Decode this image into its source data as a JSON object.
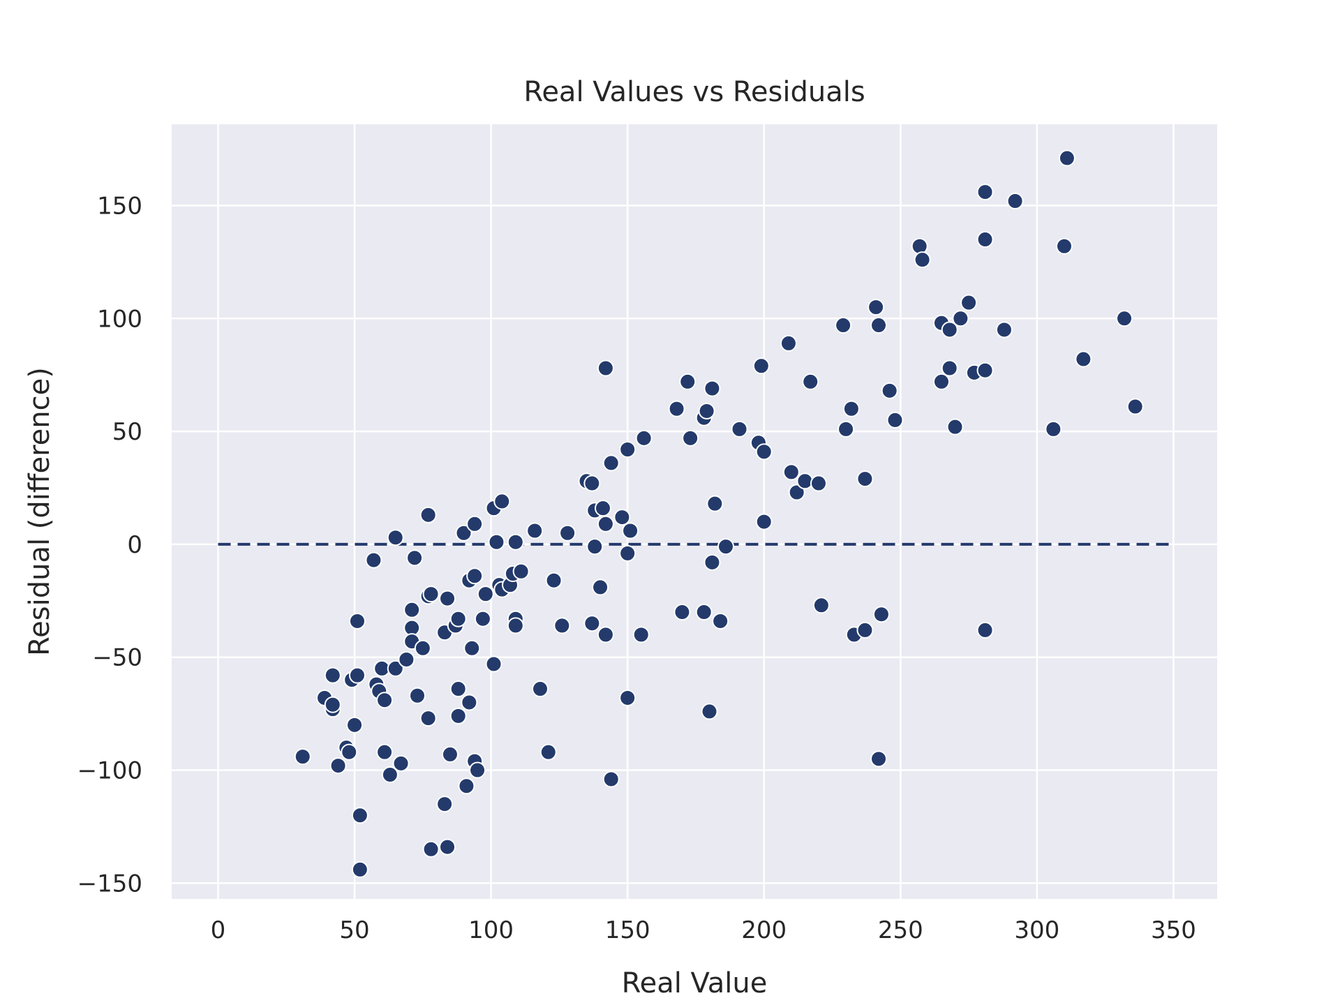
{
  "chart_data": {
    "type": "scatter",
    "title": "Real Values vs Residuals",
    "xlabel": "Real Value",
    "ylabel": "Residual (difference)",
    "xlim": [
      -17,
      366
    ],
    "ylim": [
      -157,
      186
    ],
    "xticks": [
      0,
      50,
      100,
      150,
      200,
      250,
      300,
      350
    ],
    "yticks": [
      -150,
      -100,
      -50,
      0,
      50,
      100,
      150
    ],
    "xtick_labels": [
      "0",
      "50",
      "100",
      "150",
      "200",
      "250",
      "300",
      "350"
    ],
    "ytick_labels": [
      "−150",
      "−100",
      "−50",
      "0",
      "50",
      "100",
      "150"
    ],
    "grid": true,
    "reference_line": {
      "y": 0,
      "x_range": [
        0,
        350
      ],
      "style": "dashed"
    },
    "colors": {
      "background": "#EAEAF2",
      "grid": "#FFFFFF",
      "point": "#233A6B",
      "point_edge": "#FFFFFF",
      "reference_line": "#233A6B",
      "text": "#262626"
    },
    "points": [
      {
        "x": 31,
        "y": -94
      },
      {
        "x": 39,
        "y": -68
      },
      {
        "x": 42,
        "y": -73
      },
      {
        "x": 42,
        "y": -71
      },
      {
        "x": 42,
        "y": -58
      },
      {
        "x": 44,
        "y": -98
      },
      {
        "x": 47,
        "y": -90
      },
      {
        "x": 48,
        "y": -92
      },
      {
        "x": 49,
        "y": -60
      },
      {
        "x": 50,
        "y": -80
      },
      {
        "x": 51,
        "y": -58
      },
      {
        "x": 51,
        "y": -34
      },
      {
        "x": 52,
        "y": -120
      },
      {
        "x": 52,
        "y": -144
      },
      {
        "x": 57,
        "y": -7
      },
      {
        "x": 58,
        "y": -62
      },
      {
        "x": 59,
        "y": -65
      },
      {
        "x": 60,
        "y": -55
      },
      {
        "x": 61,
        "y": -69
      },
      {
        "x": 61,
        "y": -92
      },
      {
        "x": 63,
        "y": -102
      },
      {
        "x": 65,
        "y": -55
      },
      {
        "x": 65,
        "y": 3
      },
      {
        "x": 67,
        "y": -97
      },
      {
        "x": 69,
        "y": -51
      },
      {
        "x": 71,
        "y": -29
      },
      {
        "x": 71,
        "y": -37
      },
      {
        "x": 71,
        "y": -43
      },
      {
        "x": 72,
        "y": -6
      },
      {
        "x": 73,
        "y": -67
      },
      {
        "x": 75,
        "y": -46
      },
      {
        "x": 77,
        "y": 13
      },
      {
        "x": 77,
        "y": -23
      },
      {
        "x": 77,
        "y": -77
      },
      {
        "x": 78,
        "y": -22
      },
      {
        "x": 78,
        "y": -135
      },
      {
        "x": 83,
        "y": -39
      },
      {
        "x": 83,
        "y": -115
      },
      {
        "x": 84,
        "y": -24
      },
      {
        "x": 84,
        "y": -134
      },
      {
        "x": 85,
        "y": -93
      },
      {
        "x": 87,
        "y": -36
      },
      {
        "x": 88,
        "y": -33
      },
      {
        "x": 88,
        "y": -64
      },
      {
        "x": 88,
        "y": -76
      },
      {
        "x": 90,
        "y": 5
      },
      {
        "x": 91,
        "y": -107
      },
      {
        "x": 92,
        "y": -16
      },
      {
        "x": 92,
        "y": -70
      },
      {
        "x": 93,
        "y": -46
      },
      {
        "x": 94,
        "y": 9
      },
      {
        "x": 94,
        "y": -14
      },
      {
        "x": 94,
        "y": -96
      },
      {
        "x": 95,
        "y": -100
      },
      {
        "x": 97,
        "y": -33
      },
      {
        "x": 98,
        "y": -22
      },
      {
        "x": 101,
        "y": 16
      },
      {
        "x": 101,
        "y": -53
      },
      {
        "x": 102,
        "y": 1
      },
      {
        "x": 103,
        "y": -18
      },
      {
        "x": 104,
        "y": 19
      },
      {
        "x": 104,
        "y": -20
      },
      {
        "x": 107,
        "y": -18
      },
      {
        "x": 108,
        "y": -13
      },
      {
        "x": 109,
        "y": 1
      },
      {
        "x": 109,
        "y": -33
      },
      {
        "x": 109,
        "y": -36
      },
      {
        "x": 111,
        "y": -12
      },
      {
        "x": 116,
        "y": 6
      },
      {
        "x": 118,
        "y": -64
      },
      {
        "x": 121,
        "y": -92
      },
      {
        "x": 123,
        "y": -16
      },
      {
        "x": 126,
        "y": -36
      },
      {
        "x": 128,
        "y": 5
      },
      {
        "x": 135,
        "y": 28
      },
      {
        "x": 137,
        "y": 27
      },
      {
        "x": 137,
        "y": -35
      },
      {
        "x": 138,
        "y": -1
      },
      {
        "x": 138,
        "y": 15
      },
      {
        "x": 140,
        "y": -19
      },
      {
        "x": 141,
        "y": 16
      },
      {
        "x": 142,
        "y": 9
      },
      {
        "x": 142,
        "y": -40
      },
      {
        "x": 142,
        "y": 78
      },
      {
        "x": 144,
        "y": 36
      },
      {
        "x": 144,
        "y": -104
      },
      {
        "x": 148,
        "y": 12
      },
      {
        "x": 150,
        "y": 42
      },
      {
        "x": 150,
        "y": -4
      },
      {
        "x": 150,
        "y": -68
      },
      {
        "x": 151,
        "y": 6
      },
      {
        "x": 155,
        "y": -40
      },
      {
        "x": 156,
        "y": 47
      },
      {
        "x": 168,
        "y": 60
      },
      {
        "x": 170,
        "y": -30
      },
      {
        "x": 172,
        "y": 72
      },
      {
        "x": 173,
        "y": 47
      },
      {
        "x": 178,
        "y": 56
      },
      {
        "x": 178,
        "y": -30
      },
      {
        "x": 179,
        "y": 59
      },
      {
        "x": 180,
        "y": -74
      },
      {
        "x": 181,
        "y": 69
      },
      {
        "x": 181,
        "y": -8
      },
      {
        "x": 182,
        "y": 18
      },
      {
        "x": 184,
        "y": -34
      },
      {
        "x": 186,
        "y": -1
      },
      {
        "x": 191,
        "y": 51
      },
      {
        "x": 198,
        "y": 45
      },
      {
        "x": 199,
        "y": 79
      },
      {
        "x": 200,
        "y": 41
      },
      {
        "x": 200,
        "y": 10
      },
      {
        "x": 209,
        "y": 89
      },
      {
        "x": 210,
        "y": 32
      },
      {
        "x": 212,
        "y": 23
      },
      {
        "x": 215,
        "y": 28
      },
      {
        "x": 217,
        "y": 72
      },
      {
        "x": 220,
        "y": 27
      },
      {
        "x": 221,
        "y": -27
      },
      {
        "x": 229,
        "y": 97
      },
      {
        "x": 230,
        "y": 51
      },
      {
        "x": 232,
        "y": 60
      },
      {
        "x": 233,
        "y": -40
      },
      {
        "x": 237,
        "y": 29
      },
      {
        "x": 237,
        "y": -38
      },
      {
        "x": 241,
        "y": 105
      },
      {
        "x": 242,
        "y": 97
      },
      {
        "x": 242,
        "y": -95
      },
      {
        "x": 243,
        "y": -31
      },
      {
        "x": 246,
        "y": 68
      },
      {
        "x": 248,
        "y": 55
      },
      {
        "x": 257,
        "y": 132
      },
      {
        "x": 258,
        "y": 126
      },
      {
        "x": 265,
        "y": 98
      },
      {
        "x": 265,
        "y": 72
      },
      {
        "x": 268,
        "y": 95
      },
      {
        "x": 268,
        "y": 78
      },
      {
        "x": 270,
        "y": 52
      },
      {
        "x": 272,
        "y": 100
      },
      {
        "x": 275,
        "y": 107
      },
      {
        "x": 277,
        "y": 76
      },
      {
        "x": 281,
        "y": 156
      },
      {
        "x": 281,
        "y": 135
      },
      {
        "x": 281,
        "y": 77
      },
      {
        "x": 281,
        "y": -38
      },
      {
        "x": 288,
        "y": 95
      },
      {
        "x": 292,
        "y": 152
      },
      {
        "x": 306,
        "y": 51
      },
      {
        "x": 310,
        "y": 132
      },
      {
        "x": 311,
        "y": 171
      },
      {
        "x": 317,
        "y": 82
      },
      {
        "x": 332,
        "y": 100
      },
      {
        "x": 336,
        "y": 61
      }
    ]
  }
}
